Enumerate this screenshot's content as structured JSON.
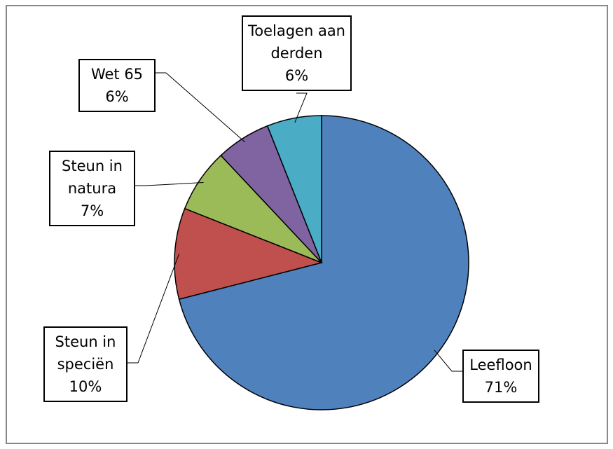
{
  "chart_data": {
    "type": "pie",
    "categories": [
      "Leefloon",
      "Steun in speciën",
      "Steun in natura",
      "Wet 65",
      "Toelagen aan derden"
    ],
    "values": [
      71,
      10,
      7,
      6,
      6
    ],
    "value_labels": [
      "71%",
      "10%",
      "7%",
      "6%",
      "6%"
    ],
    "colors": [
      "#4f81bd",
      "#c0504d",
      "#9bbb59",
      "#8064a2",
      "#4bacc6"
    ]
  }
}
